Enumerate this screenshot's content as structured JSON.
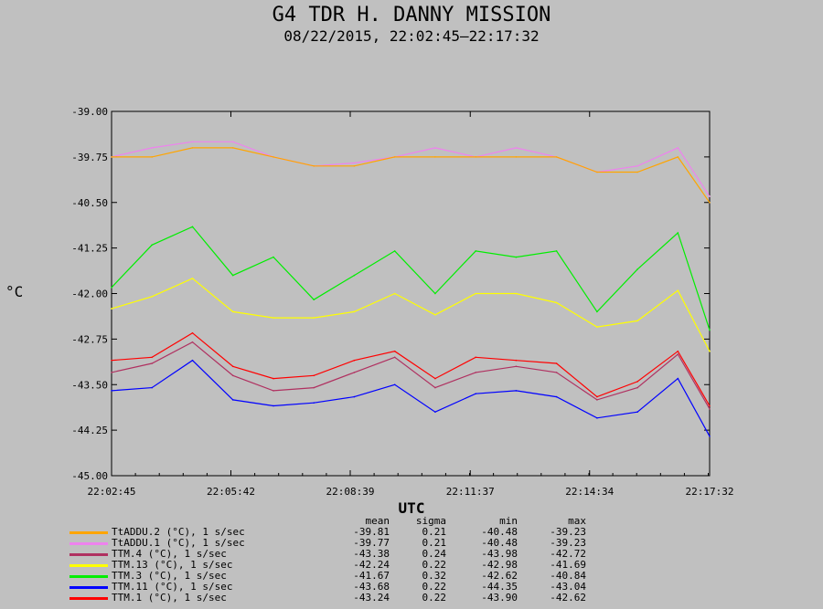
{
  "title": "G4 TDR H. DANNY MISSION",
  "subtitle": "08/22/2015, 22:02:45–22:17:32",
  "chart_data": {
    "type": "line",
    "xlabel": "UTC",
    "ylabel": "°C",
    "ylim": [
      -45.0,
      -39.0
    ],
    "xlim": [
      "22:02:45",
      "22:17:32"
    ],
    "yticks": [
      "-39.00",
      "-39.75",
      "-40.50",
      "-41.25",
      "-42.00",
      "-42.75",
      "-43.50",
      "-44.25",
      "-45.00"
    ],
    "xticks": [
      "22:02:45",
      "22:05:42",
      "22:08:39",
      "22:11:37",
      "22:14:34",
      "22:17:32"
    ],
    "x_seconds": [
      0,
      60,
      120,
      180,
      240,
      300,
      360,
      420,
      480,
      540,
      600,
      660,
      720,
      780,
      840,
      887
    ],
    "series": [
      {
        "name": "TtADDU.2 (°C), 1 s/sec",
        "color": "#ffa500",
        "values": [
          -39.75,
          -39.75,
          -39.6,
          -39.6,
          -39.75,
          -39.9,
          -39.9,
          -39.75,
          -39.75,
          -39.75,
          -39.75,
          -39.75,
          -40.0,
          -40.0,
          -39.75,
          -40.5
        ]
      },
      {
        "name": "TtADDU.1 (°C), 1 s/sec",
        "color": "#ee82ee",
        "values": [
          -39.75,
          -39.6,
          -39.5,
          -39.5,
          -39.75,
          -39.9,
          -39.85,
          -39.75,
          -39.6,
          -39.75,
          -39.6,
          -39.75,
          -40.0,
          -39.9,
          -39.6,
          -40.4
        ]
      },
      {
        "name": "TTM.4 (°C), 1 s/sec",
        "color": "#b03060",
        "values": [
          -43.3,
          -43.15,
          -42.8,
          -43.35,
          -43.6,
          -43.55,
          -43.3,
          -43.05,
          -43.55,
          -43.3,
          -43.2,
          -43.3,
          -43.75,
          -43.55,
          -43.0,
          -43.9
        ]
      },
      {
        "name": "TTM.13 (°C), 1 s/sec",
        "color": "#ffff00",
        "values": [
          -42.25,
          -42.05,
          -41.75,
          -42.3,
          -42.4,
          -42.4,
          -42.3,
          -42.0,
          -42.35,
          -42.0,
          -42.0,
          -42.15,
          -42.55,
          -42.45,
          -41.95,
          -42.95
        ]
      },
      {
        "name": "TTM.3 (°C), 1 s/sec",
        "color": "#00ee00",
        "values": [
          -41.9,
          -41.2,
          -40.9,
          -41.7,
          -41.4,
          -42.1,
          -41.7,
          -41.3,
          -42.0,
          -41.3,
          -41.4,
          -41.3,
          -42.3,
          -41.6,
          -41.0,
          -42.6
        ]
      },
      {
        "name": "TTM.11 (°C), 1 s/sec",
        "color": "#0000ff",
        "values": [
          -43.6,
          -43.55,
          -43.1,
          -43.75,
          -43.85,
          -43.8,
          -43.7,
          -43.5,
          -43.95,
          -43.65,
          -43.6,
          -43.7,
          -44.05,
          -43.95,
          -43.4,
          -44.35
        ]
      },
      {
        "name": "TTM.1 (°C), 1 s/sec",
        "color": "#ff0000",
        "values": [
          -43.1,
          -43.05,
          -42.65,
          -43.2,
          -43.4,
          -43.35,
          -43.1,
          -42.95,
          -43.4,
          -43.05,
          -43.1,
          -43.15,
          -43.7,
          -43.45,
          -42.95,
          -43.85
        ]
      }
    ]
  },
  "stats": {
    "headers": [
      "mean",
      "sigma",
      "min",
      "max"
    ],
    "rows": [
      [
        "-39.81",
        "0.21",
        "-40.48",
        "-39.23"
      ],
      [
        "-39.77",
        "0.21",
        "-40.48",
        "-39.23"
      ],
      [
        "-43.38",
        "0.24",
        "-43.98",
        "-42.72"
      ],
      [
        "-42.24",
        "0.22",
        "-42.98",
        "-41.69"
      ],
      [
        "-41.67",
        "0.32",
        "-42.62",
        "-40.84"
      ],
      [
        "-43.68",
        "0.22",
        "-44.35",
        "-43.04"
      ],
      [
        "-43.24",
        "0.22",
        "-43.90",
        "-42.62"
      ]
    ]
  }
}
